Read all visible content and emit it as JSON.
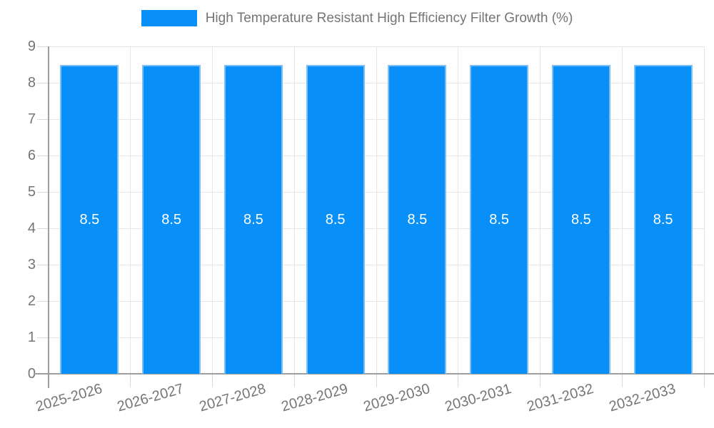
{
  "legend": {
    "label": "High Temperature Resistant High Efficiency Filter Growth (%)"
  },
  "chart_data": {
    "type": "bar",
    "title": "",
    "legend_entries": [
      "High Temperature Resistant High Efficiency Filter Growth (%)"
    ],
    "legend_position": "top",
    "categories": [
      "2025-2026",
      "2026-2027",
      "2027-2028",
      "2028-2029",
      "2029-2030",
      "2030-2031",
      "2031-2032",
      "2032-2033"
    ],
    "series": [
      {
        "name": "High Temperature Resistant High Efficiency Filter Growth (%)",
        "values": [
          8.5,
          8.5,
          8.5,
          8.5,
          8.5,
          8.5,
          8.5,
          8.5
        ]
      }
    ],
    "bar_value_labels": [
      "8.5",
      "8.5",
      "8.5",
      "8.5",
      "8.5",
      "8.5",
      "8.5",
      "8.5"
    ],
    "xlabel": "",
    "ylabel": "",
    "ylim": [
      0,
      9
    ],
    "yticks": [
      0,
      1,
      2,
      3,
      4,
      5,
      6,
      7,
      8,
      9
    ],
    "grid": true,
    "colors": {
      "bar_fill": "#0990f8",
      "bar_border": "#7cc0f9",
      "bar_value_text": "#ffffff",
      "axis_text": "#757575",
      "grid_line": "#e6e6e6",
      "axis_line": "#9e9e9e",
      "tick_line": "#d9d9d9"
    }
  }
}
